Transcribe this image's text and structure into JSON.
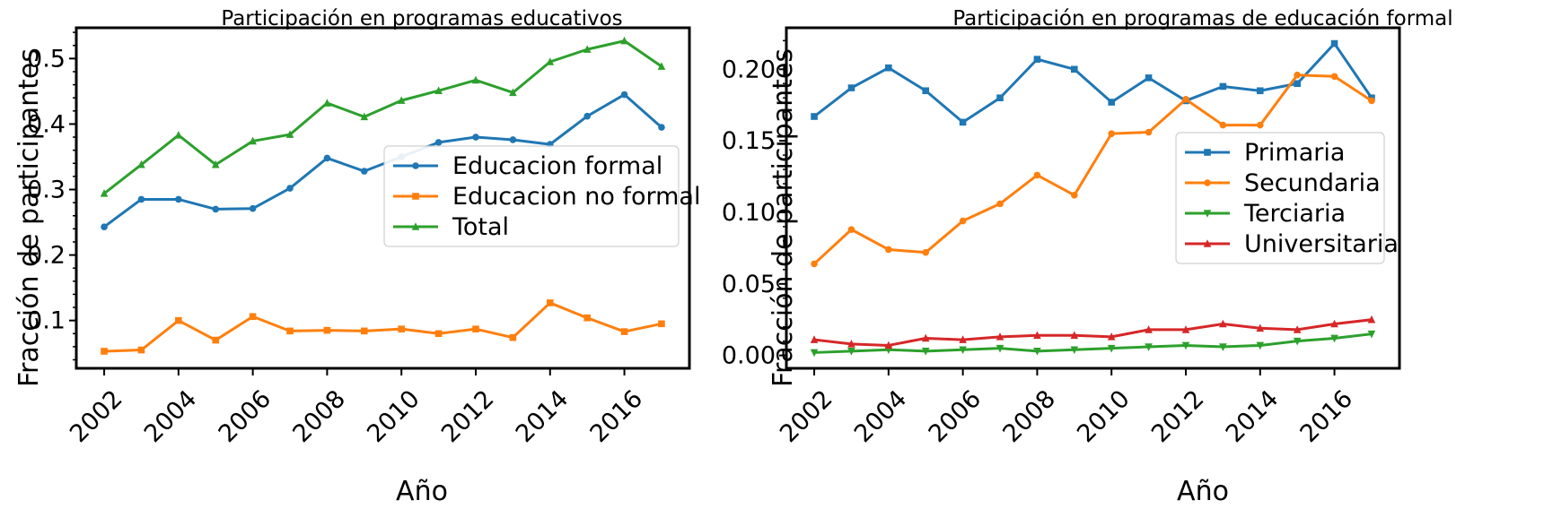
{
  "chart_data": [
    {
      "type": "line",
      "title": "Participación en programas educativos",
      "xlabel": "Año",
      "ylabel": "Fracción de participantes",
      "x": [
        2002,
        2003,
        2004,
        2005,
        2006,
        2007,
        2008,
        2009,
        2010,
        2011,
        2012,
        2013,
        2014,
        2015,
        2016,
        2017
      ],
      "xlim": [
        2001.25,
        2017.75
      ],
      "ylim": [
        0.027,
        0.547
      ],
      "xticks": [
        2002,
        2004,
        2006,
        2008,
        2010,
        2012,
        2014,
        2016
      ],
      "xtick_labels": [
        "2002",
        "2004",
        "2006",
        "2008",
        "2010",
        "2012",
        "2014",
        "2016"
      ],
      "yticks": [
        0.1,
        0.2,
        0.3,
        0.4,
        0.5
      ],
      "ytick_labels": [
        "0.1",
        "0.2",
        "0.3",
        "0.4",
        "0.5"
      ],
      "grid": false,
      "legend_position": "center-right",
      "series": [
        {
          "name": "Educacion formal",
          "color": "#1f77b4",
          "marker": "circle",
          "values": [
            0.243,
            0.285,
            0.285,
            0.27,
            0.271,
            0.302,
            0.348,
            0.328,
            0.35,
            0.372,
            0.38,
            0.376,
            0.369,
            0.412,
            0.445,
            0.395
          ]
        },
        {
          "name": "Educacion no formal",
          "color": "#ff7f0e",
          "marker": "square",
          "values": [
            0.053,
            0.055,
            0.1,
            0.07,
            0.106,
            0.084,
            0.085,
            0.084,
            0.087,
            0.08,
            0.087,
            0.074,
            0.127,
            0.104,
            0.083,
            0.095
          ]
        },
        {
          "name": "Total",
          "color": "#2ca02c",
          "marker": "triangle-up",
          "values": [
            0.294,
            0.338,
            0.383,
            0.338,
            0.374,
            0.384,
            0.432,
            0.411,
            0.436,
            0.451,
            0.467,
            0.448,
            0.495,
            0.514,
            0.527,
            0.488
          ]
        }
      ]
    },
    {
      "type": "line",
      "title": "Participación en programas de educación formal",
      "xlabel": "Año",
      "ylabel": "Fracción de participantes",
      "x": [
        2002,
        2003,
        2004,
        2005,
        2006,
        2007,
        2008,
        2009,
        2010,
        2011,
        2012,
        2013,
        2014,
        2015,
        2016,
        2017
      ],
      "xlim": [
        2001.25,
        2017.75
      ],
      "ylim": [
        -0.009,
        0.229
      ],
      "xticks": [
        2002,
        2004,
        2006,
        2008,
        2010,
        2012,
        2014,
        2016
      ],
      "xtick_labels": [
        "2002",
        "2004",
        "2006",
        "2008",
        "2010",
        "2012",
        "2014",
        "2016"
      ],
      "yticks": [
        0.0,
        0.05,
        0.1,
        0.15,
        0.2
      ],
      "ytick_labels": [
        "0.00",
        "0.05",
        "0.10",
        "0.15",
        "0.20"
      ],
      "grid": false,
      "legend_position": "center-right",
      "series": [
        {
          "name": "Primaria",
          "color": "#1f77b4",
          "marker": "square",
          "values": [
            0.167,
            0.187,
            0.201,
            0.185,
            0.163,
            0.18,
            0.207,
            0.2,
            0.177,
            0.194,
            0.178,
            0.188,
            0.185,
            0.19,
            0.218,
            0.18
          ]
        },
        {
          "name": "Secundaria",
          "color": "#ff7f0e",
          "marker": "circle",
          "values": [
            0.064,
            0.088,
            0.074,
            0.072,
            0.094,
            0.106,
            0.126,
            0.112,
            0.155,
            0.156,
            0.179,
            0.161,
            0.161,
            0.196,
            0.195,
            0.178
          ]
        },
        {
          "name": "Terciaria",
          "color": "#2ca02c",
          "marker": "triangle-down",
          "values": [
            0.002,
            0.003,
            0.004,
            0.003,
            0.004,
            0.005,
            0.003,
            0.004,
            0.005,
            0.006,
            0.007,
            0.006,
            0.007,
            0.01,
            0.012,
            0.015
          ]
        },
        {
          "name": "Universitaria",
          "color": "#d62728",
          "marker": "triangle-up",
          "values": [
            0.011,
            0.008,
            0.007,
            0.012,
            0.011,
            0.013,
            0.014,
            0.014,
            0.013,
            0.018,
            0.018,
            0.022,
            0.019,
            0.018,
            0.022,
            0.025
          ]
        }
      ]
    }
  ]
}
